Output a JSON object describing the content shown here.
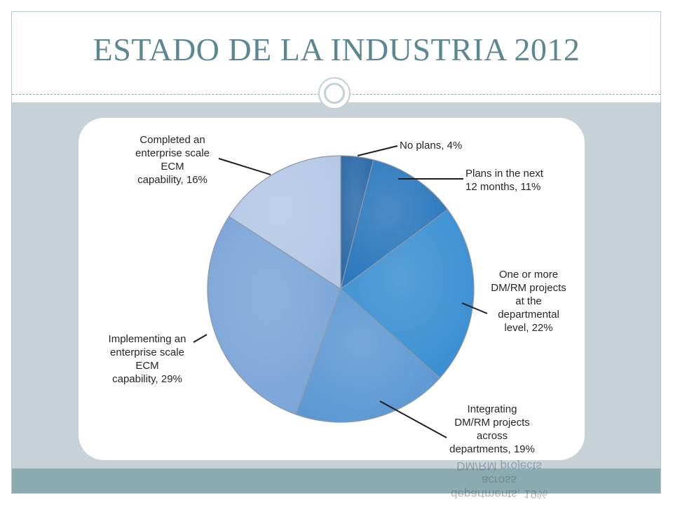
{
  "slide": {
    "title": "ESTADO DE LA INDUSTRIA 2012"
  },
  "colors": {
    "title": "#5b8793",
    "background_panel": "#c6d2d8",
    "footer_band": "#8aabb2"
  },
  "chart_data": {
    "type": "pie",
    "title": "",
    "categories": [
      "No plans, 4%",
      "Plans in the next 12 months, 11%",
      "One or more DM/RM projects at the departmental level, 22%",
      "Integrating DM/RM projects across departments, 19%",
      "Implementing an enterprise scale ECM capability, 29%",
      "Completed an enterprise scale ECM capability, 16%"
    ],
    "values": [
      4,
      11,
      22,
      19,
      29,
      16
    ],
    "units": "%",
    "label_lines": [
      [
        "No plans, 4%"
      ],
      [
        "Plans in the next",
        "12 months, 11%"
      ],
      [
        "One or more",
        "DM/RM projects",
        "at the",
        "departmental",
        "level, 22%"
      ],
      [
        "Integrating",
        "DM/RM projects",
        "across",
        "departments, 19%"
      ],
      [
        "Implementing an",
        "enterprise scale",
        "ECM",
        "capability, 29%"
      ],
      [
        "Completed an",
        "enterprise scale",
        "ECM",
        "capability, 16%"
      ]
    ],
    "colors": [
      "#2c6aa8",
      "#2a78bd",
      "#3a8fd2",
      "#5d98d3",
      "#7aa5d8",
      "#b4c8e6"
    ],
    "legend": "none",
    "start_angle_deg": 0,
    "direction": "clockwise"
  },
  "reflection": {
    "lines": [
      "departments, 19%",
      "across",
      "DM/RM projects"
    ]
  }
}
